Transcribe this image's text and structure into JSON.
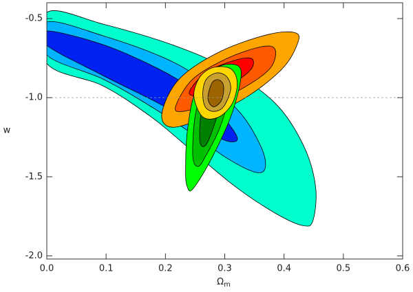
{
  "chart_data": {
    "type": "contour",
    "xlabel": "Ω",
    "xlabel_sub": "m",
    "ylabel": "w",
    "xlim": [
      0,
      0.6
    ],
    "ylim": [
      -2.02,
      -0.4
    ],
    "xticks": [
      {
        "value": 0,
        "label": "0.0"
      },
      0.1,
      0.2,
      0.3,
      0.4,
      0.5,
      0.6
    ],
    "yticks": [
      {
        "value": -2,
        "label": "-2.0"
      },
      -1.5,
      {
        "value": -1,
        "label": "-1.0"
      },
      -0.5
    ],
    "hline": -1,
    "series": [
      {
        "color": "#00ffcc",
        "x": [
          0,
          0.095,
          0.211,
          0.304,
          0.385,
          0.432,
          0.453,
          0.449,
          0.432,
          0.385,
          0.316,
          0.246,
          0.176,
          0.095,
          0
        ],
        "y": [
          -0.461,
          -0.535,
          -0.665,
          -0.817,
          -1.035,
          -1.296,
          -1.557,
          -1.774,
          -1.809,
          -1.73,
          -1.557,
          -1.339,
          -1.122,
          -0.926,
          -0.783
        ]
      },
      {
        "color": "#00b4ff",
        "x": [
          0,
          0.095,
          0.2,
          0.269,
          0.327,
          0.362,
          0.368,
          0.35,
          0.304,
          0.246,
          0.176,
          0.095,
          0
        ],
        "y": [
          -0.522,
          -0.609,
          -0.752,
          -0.904,
          -1.1,
          -1.317,
          -1.448,
          -1.47,
          -1.383,
          -1.23,
          -1.057,
          -0.883,
          -0.73
        ]
      },
      {
        "color": "#0022f0",
        "x": [
          0,
          0.095,
          0.188,
          0.246,
          0.292,
          0.321,
          0.304,
          0.258,
          0.188,
          0.095,
          0
        ],
        "y": [
          -0.578,
          -0.665,
          -0.817,
          -0.948,
          -1.1,
          -1.252,
          -1.274,
          -1.187,
          -1.035,
          -0.861,
          -0.67
        ]
      },
      {
        "color": "#ffa500",
        "x": [
          0.194,
          0.223,
          0.292,
          0.374,
          0.42,
          0.422,
          0.397,
          0.339,
          0.269,
          0.211
        ],
        "y": [
          -1.1,
          -0.883,
          -0.709,
          -0.6,
          -0.591,
          -0.665,
          -0.817,
          -0.991,
          -1.122,
          -1.187
        ]
      },
      {
        "color": "#ff5a00",
        "x": [
          0.217,
          0.246,
          0.304,
          0.362,
          0.385,
          0.376,
          0.327,
          0.269,
          0.229
        ],
        "y": [
          -1.057,
          -0.883,
          -0.752,
          -0.678,
          -0.696,
          -0.817,
          -0.948,
          -1.043,
          -1.087
        ]
      },
      {
        "color": "#ff0000",
        "x": [
          0.24,
          0.269,
          0.316,
          0.345,
          0.345,
          0.316,
          0.269
        ],
        "y": [
          -0.97,
          -0.839,
          -0.765,
          -0.752,
          -0.817,
          -0.904,
          -0.983
        ]
      },
      {
        "color": "#00ff00",
        "x": [
          0.234,
          0.237,
          0.252,
          0.287,
          0.321,
          0.327,
          0.31,
          0.275,
          0.246,
          0.237
        ],
        "y": [
          -1.47,
          -1.209,
          -0.948,
          -0.809,
          -0.796,
          -0.883,
          -1.122,
          -1.404,
          -1.578,
          -1.565
        ]
      },
      {
        "color": "#00c000",
        "x": [
          0.246,
          0.252,
          0.275,
          0.298,
          0.31,
          0.292,
          0.269,
          0.255
        ],
        "y": [
          -1.361,
          -1.078,
          -0.883,
          -0.852,
          -0.948,
          -1.187,
          -1.361,
          -1.435
        ]
      },
      {
        "color": "#008000",
        "x": [
          0.258,
          0.261,
          0.275,
          0.29,
          0.292,
          0.279,
          0.267
        ],
        "y": [
          -1.274,
          -1.078,
          -0.948,
          -0.926,
          -1.035,
          -1.209,
          -1.304
        ]
      },
      {
        "color": "#ffd700",
        "x": [
          0.248,
          0.258,
          0.281,
          0.31,
          0.321,
          0.313,
          0.29,
          0.263
        ],
        "y": [
          -0.991,
          -0.87,
          -0.809,
          -0.817,
          -0.904,
          -1.035,
          -1.122,
          -1.122
        ]
      },
      {
        "color": "#c8a030",
        "x": [
          0.263,
          0.269,
          0.287,
          0.304,
          0.31,
          0.298,
          0.281,
          0.267
        ],
        "y": [
          -0.97,
          -0.883,
          -0.843,
          -0.87,
          -0.948,
          -1.057,
          -1.087,
          -1.057
        ]
      },
      {
        "color": "#9b6400",
        "x": [
          0.272,
          0.279,
          0.29,
          0.298,
          0.295,
          0.283,
          0.274
        ],
        "y": [
          -0.983,
          -0.904,
          -0.887,
          -0.926,
          -1.013,
          -1.057,
          -1.035
        ]
      }
    ]
  }
}
